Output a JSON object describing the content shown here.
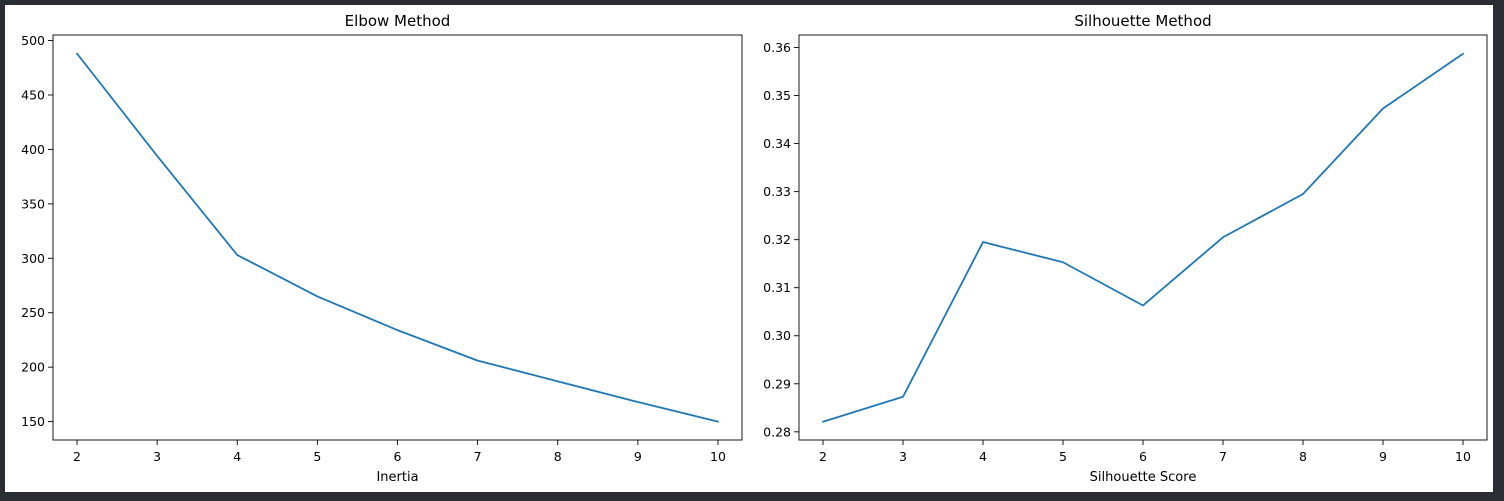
{
  "chart_data": [
    {
      "type": "line",
      "title": "Elbow Method",
      "xlabel": "Inertia",
      "ylabel": "",
      "x": [
        2,
        3,
        4,
        5,
        6,
        7,
        8,
        9,
        10
      ],
      "series": [
        {
          "values": [
            488,
            394,
            303,
            265,
            234,
            206,
            187,
            168,
            150
          ]
        }
      ],
      "xlim": [
        1.7,
        10.3
      ],
      "ylim": [
        133.1,
        505.1
      ],
      "xticks": [
        2,
        3,
        4,
        5,
        6,
        7,
        8,
        9,
        10
      ],
      "yticks": [
        150,
        200,
        250,
        300,
        350,
        400,
        450,
        500
      ],
      "yticks_labels": [
        "150",
        "200",
        "250",
        "300",
        "350",
        "400",
        "450",
        "500"
      ],
      "grid": false,
      "line_color": "#1f77b4"
    },
    {
      "type": "line",
      "title": "Silhouette Method",
      "xlabel": "Silhouette Score",
      "ylabel": "",
      "x": [
        2,
        3,
        4,
        5,
        6,
        7,
        8,
        9,
        10
      ],
      "series": [
        {
          "values": [
            0.2821,
            0.2873,
            0.3195,
            0.3153,
            0.3063,
            0.3205,
            0.3295,
            0.3473,
            0.3587
          ]
        }
      ],
      "xlim": [
        1.7,
        10.3
      ],
      "ylim": [
        0.2783,
        0.3626
      ],
      "xticks": [
        2,
        3,
        4,
        5,
        6,
        7,
        8,
        9,
        10
      ],
      "yticks": [
        0.28,
        0.29,
        0.3,
        0.31,
        0.32,
        0.33,
        0.34,
        0.35,
        0.36
      ],
      "yticks_labels": [
        "0.28",
        "0.29",
        "0.30",
        "0.31",
        "0.32",
        "0.33",
        "0.34",
        "0.35",
        "0.36"
      ],
      "grid": false,
      "line_color": "#1f77b4"
    }
  ]
}
